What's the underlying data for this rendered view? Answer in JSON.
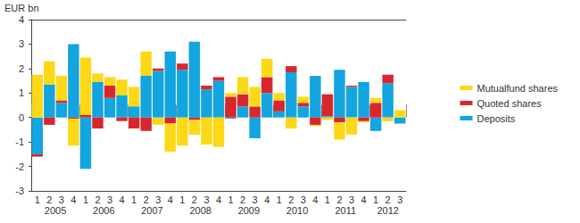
{
  "chart_data": {
    "type": "bar",
    "stacked": true,
    "y_label": "EUR bn",
    "categories": [
      "1",
      "2",
      "3",
      "4",
      "1",
      "2",
      "3",
      "4",
      "1",
      "2",
      "3",
      "4",
      "1",
      "2",
      "3",
      "4",
      "1",
      "2",
      "3",
      "4",
      "1",
      "2",
      "3",
      "4",
      "1",
      "2",
      "3",
      "4",
      "1",
      "2",
      "3"
    ],
    "groups": [
      {
        "label": "2005",
        "size": 4
      },
      {
        "label": "2006",
        "size": 4
      },
      {
        "label": "2007",
        "size": 4
      },
      {
        "label": "2008",
        "size": 4
      },
      {
        "label": "2009",
        "size": 4
      },
      {
        "label": "2010",
        "size": 4
      },
      {
        "label": "2011",
        "size": 4
      },
      {
        "label": "2012",
        "size": 3
      }
    ],
    "series": [
      {
        "name": "Deposits",
        "color": "#12a5e0",
        "values": [
          -1.5,
          1.35,
          0.6,
          3.0,
          -2.1,
          1.45,
          0.8,
          0.9,
          0.45,
          1.7,
          1.9,
          2.7,
          1.95,
          3.1,
          1.15,
          1.5,
          -0.05,
          0.45,
          -0.85,
          1.0,
          0.25,
          1.85,
          0.45,
          1.7,
          0.05,
          1.95,
          1.25,
          1.45,
          -0.55,
          1.4,
          -0.25
        ]
      },
      {
        "name": "Quoted shares",
        "color": "#d9262c",
        "values": [
          -0.1,
          -0.3,
          0.1,
          -0.05,
          0.1,
          -0.45,
          0.5,
          -0.15,
          -0.45,
          -0.55,
          0.1,
          -0.25,
          0.25,
          -0.1,
          0.15,
          0.15,
          0.85,
          0.5,
          0.45,
          0.65,
          0.45,
          0.25,
          0.15,
          -0.3,
          0.9,
          -0.2,
          0.05,
          -0.15,
          0.6,
          0.35,
          0.0
        ]
      },
      {
        "name": "Mutualfund shares",
        "color": "#fdd817",
        "values": [
          1.75,
          0.95,
          1.0,
          -1.1,
          2.35,
          0.35,
          0.35,
          0.65,
          0.8,
          1.0,
          -0.3,
          -1.15,
          -1.15,
          -0.6,
          -1.1,
          -1.2,
          0.15,
          0.7,
          0.8,
          0.75,
          0.3,
          -0.45,
          0.25,
          -0.05,
          -0.1,
          -0.7,
          -0.7,
          -0.05,
          0.2,
          -0.15,
          0.3
        ]
      }
    ],
    "ylim": [
      -3,
      4
    ],
    "yticks": [
      -3,
      -2,
      -1,
      0,
      1,
      2,
      3,
      4
    ],
    "grid": false,
    "legend": "right"
  }
}
